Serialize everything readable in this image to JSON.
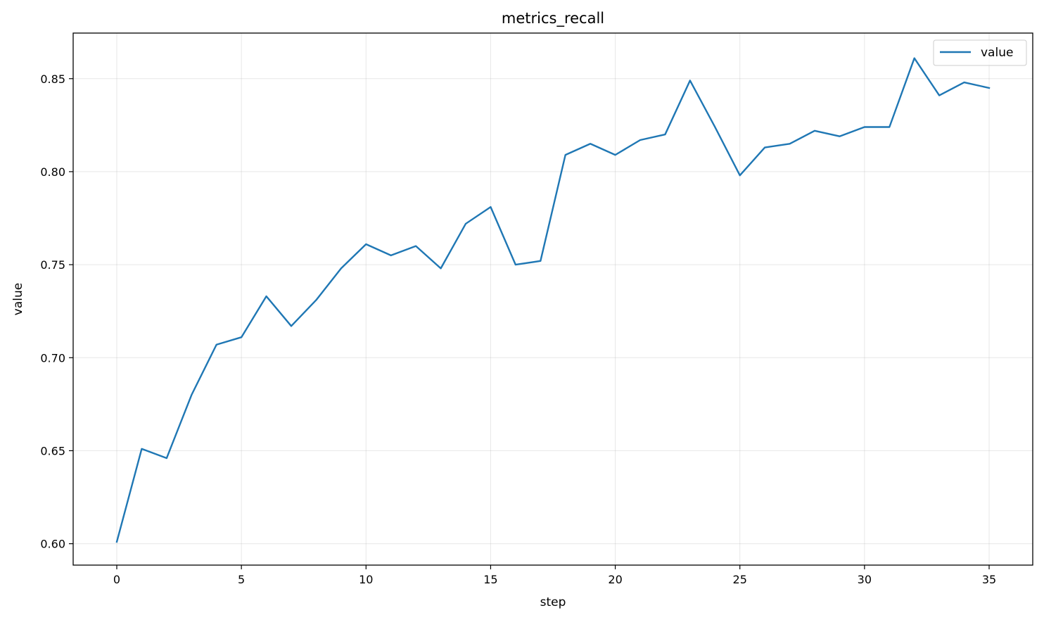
{
  "chart_data": {
    "type": "line",
    "title": "metrics_recall",
    "xlabel": "step",
    "ylabel": "value",
    "xlim": [
      -1.75,
      36.75
    ],
    "ylim": [
      0.5885,
      0.8745
    ],
    "xticks": [
      0,
      5,
      10,
      15,
      20,
      25,
      30,
      35
    ],
    "yticks": [
      0.6,
      0.65,
      0.7,
      0.75,
      0.8,
      0.85
    ],
    "ytick_labels": [
      "0.60",
      "0.65",
      "0.70",
      "0.75",
      "0.80",
      "0.85"
    ],
    "grid": true,
    "legend": "top-right",
    "series": [
      {
        "name": "value",
        "color": "#1f77b4",
        "x": [
          0,
          1,
          2,
          3,
          4,
          5,
          6,
          7,
          8,
          9,
          10,
          11,
          12,
          13,
          14,
          15,
          16,
          17,
          18,
          19,
          20,
          21,
          22,
          23,
          24,
          25,
          26,
          27,
          28,
          29,
          30,
          31,
          32,
          33,
          34,
          35
        ],
        "values": [
          0.601,
          0.651,
          0.646,
          0.68,
          0.707,
          0.711,
          0.733,
          0.717,
          0.731,
          0.748,
          0.761,
          0.755,
          0.76,
          0.748,
          0.772,
          0.781,
          0.75,
          0.752,
          0.809,
          0.815,
          0.809,
          0.817,
          0.82,
          0.849,
          0.824,
          0.798,
          0.813,
          0.815,
          0.822,
          0.819,
          0.824,
          0.824,
          0.861,
          0.841,
          0.848,
          0.845
        ]
      }
    ]
  }
}
